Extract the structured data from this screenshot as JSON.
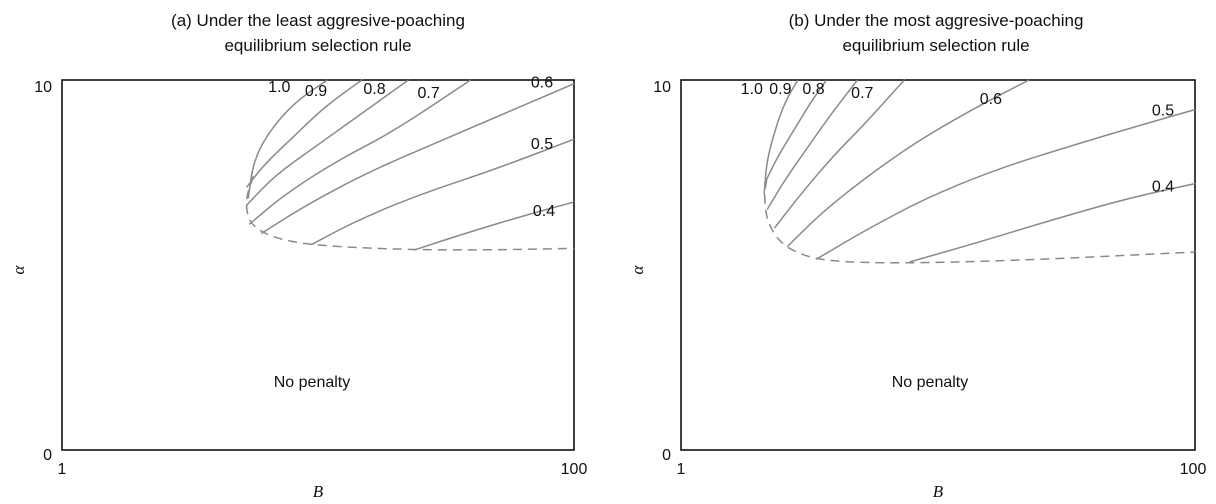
{
  "chart_data": [
    {
      "type": "line",
      "title": "(a) Under the least aggresive-poaching equilibrium selection rule",
      "title_lines": [
        "(a) Under the least aggresive-poaching",
        "equilibrium selection rule"
      ],
      "xlabel": "B",
      "ylabel": "α",
      "x_ticks": [
        "1",
        "100"
      ],
      "y_ticks": [
        "0",
        "10"
      ],
      "xlim": [
        1,
        100
      ],
      "ylim": [
        0,
        10
      ],
      "region_label": "No penalty",
      "colors": {
        "curve": "#8a8a8a",
        "axes": "#111111"
      },
      "boundary": {
        "style": "dashed",
        "x": [
          38.0,
          36.5,
          37.0,
          39.5,
          43.0,
          49.0,
          60.0,
          75.0,
          90.0,
          100.0
        ],
        "y": [
          7.4,
          6.8,
          6.2,
          5.9,
          5.7,
          5.55,
          5.45,
          5.4,
          5.42,
          5.45
        ]
      },
      "series": [
        {
          "name": "1.0",
          "x": [
            37.0,
            38.0,
            41.0,
            46.0,
            52.3
          ],
          "y": [
            6.8,
            7.8,
            8.6,
            9.4,
            10.0
          ]
        },
        {
          "name": "0.9",
          "x": [
            36.7,
            40.0,
            46.0,
            52.0,
            59.0
          ],
          "y": [
            7.1,
            7.7,
            8.5,
            9.3,
            10.0
          ]
        },
        {
          "name": "0.8",
          "x": [
            36.6,
            42.0,
            50.0,
            58.0,
            68.0
          ],
          "y": [
            6.6,
            7.4,
            8.2,
            9.0,
            10.0
          ]
        },
        {
          "name": "0.7",
          "x": [
            37.2,
            44.0,
            54.0,
            65.0,
            80.0
          ],
          "y": [
            6.1,
            6.9,
            7.8,
            8.6,
            10.0
          ]
        },
        {
          "name": "0.6",
          "x": [
            39.5,
            48.0,
            60.0,
            75.0,
            90.0,
            100.0
          ],
          "y": [
            5.85,
            6.6,
            7.5,
            8.4,
            9.3,
            9.9
          ]
        },
        {
          "name": "0.5",
          "x": [
            49.2,
            58.0,
            70.0,
            85.0,
            100.0
          ],
          "y": [
            5.55,
            6.2,
            6.9,
            7.6,
            8.4
          ]
        },
        {
          "name": "0.4",
          "x": [
            69.0,
            80.0,
            92.0,
            100.0
          ],
          "y": [
            5.4,
            5.9,
            6.4,
            6.7
          ]
        }
      ]
    },
    {
      "type": "line",
      "title": "(b) Under the most aggresive-poaching equilibrium selection rule",
      "title_lines": [
        "(b) Under the most aggresive-poaching",
        "equilibrium selection rule"
      ],
      "xlabel": "B",
      "ylabel": "α",
      "x_ticks": [
        "1",
        "100"
      ],
      "y_ticks": [
        "0",
        "10"
      ],
      "xlim": [
        1,
        100
      ],
      "ylim": [
        0,
        10
      ],
      "region_label": "No penalty",
      "colors": {
        "curve": "#8a8a8a",
        "axes": "#111111"
      },
      "boundary": {
        "style": "dashed",
        "x": [
          17.5,
          17.0,
          17.5,
          20.0,
          24.5,
          30.0,
          40.0,
          55.0,
          70.0,
          85.0,
          100.0
        ],
        "y": [
          7.3,
          6.9,
          6.2,
          5.6,
          5.25,
          5.1,
          5.05,
          5.08,
          5.15,
          5.25,
          5.35
        ]
      },
      "series": [
        {
          "name": "1.0",
          "x": [
            17.0,
            17.5,
            19.0,
            21.0,
            23.5
          ],
          "y": [
            6.9,
            7.8,
            8.6,
            9.4,
            10.0
          ]
        },
        {
          "name": "0.9",
          "x": [
            17.1,
            19.5,
            23.0,
            26.0,
            29.0
          ],
          "y": [
            7.2,
            7.9,
            8.7,
            9.4,
            10.0
          ]
        },
        {
          "name": "0.8",
          "x": [
            17.6,
            21.0,
            25.5,
            30.0,
            35.0
          ],
          "y": [
            6.5,
            7.3,
            8.2,
            9.1,
            10.0
          ]
        },
        {
          "name": "0.7",
          "x": [
            19.0,
            24.0,
            30.0,
            37.0,
            44.0
          ],
          "y": [
            6.0,
            6.9,
            7.9,
            8.9,
            10.0
          ]
        },
        {
          "name": "0.6",
          "x": [
            21.5,
            28.0,
            36.0,
            46.0,
            57.0,
            68.0
          ],
          "y": [
            5.5,
            6.4,
            7.3,
            8.3,
            9.2,
            10.0
          ]
        },
        {
          "name": "0.5",
          "x": [
            27.0,
            36.0,
            48.0,
            62.0,
            78.0,
            90.0,
            100.0
          ],
          "y": [
            5.15,
            5.9,
            6.8,
            7.6,
            8.3,
            8.8,
            9.2
          ]
        },
        {
          "name": "0.4",
          "x": [
            45.0,
            58.0,
            72.0,
            87.0,
            100.0
          ],
          "y": [
            5.08,
            5.6,
            6.2,
            6.8,
            7.2
          ]
        }
      ]
    }
  ]
}
